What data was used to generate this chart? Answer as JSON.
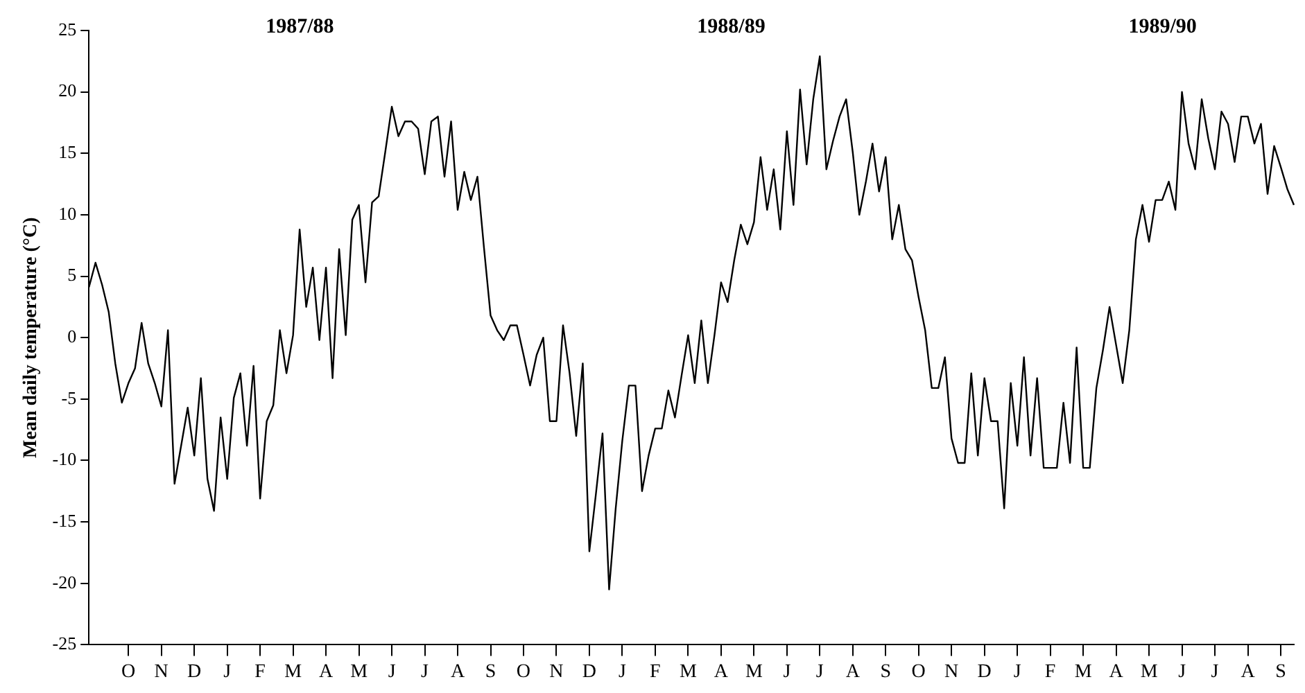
{
  "chart_data": {
    "type": "line",
    "ylabel": "Mean daily temperature (°C)",
    "annotations": [
      "1987/88",
      "1988/89",
      "1989/90"
    ],
    "grid": false,
    "legend": false,
    "marker": "none",
    "line_style": "solid",
    "ylim": [
      -25,
      25
    ],
    "yticks": [
      -25,
      -20,
      -15,
      -10,
      -5,
      0,
      5,
      10,
      15,
      20,
      25
    ],
    "categories": [
      null,
      null,
      null,
      null,
      null,
      null,
      "O",
      null,
      null,
      null,
      null,
      "N",
      null,
      null,
      null,
      null,
      "D",
      null,
      null,
      null,
      null,
      "J",
      null,
      null,
      null,
      null,
      "F",
      null,
      null,
      null,
      null,
      "M",
      null,
      null,
      null,
      null,
      "A",
      null,
      null,
      null,
      null,
      "M",
      null,
      null,
      null,
      null,
      "J",
      null,
      null,
      null,
      null,
      "J",
      null,
      null,
      null,
      null,
      "A",
      null,
      null,
      null,
      null,
      "S",
      null,
      null,
      null,
      null,
      "O",
      null,
      null,
      null,
      null,
      "N",
      null,
      null,
      null,
      null,
      "D",
      null,
      null,
      null,
      null,
      "J",
      null,
      null,
      null,
      null,
      "F",
      null,
      null,
      null,
      null,
      "M",
      null,
      null,
      null,
      null,
      "A",
      null,
      null,
      null,
      null,
      "M",
      null,
      null,
      null,
      null,
      "J",
      null,
      null,
      null,
      null,
      "J",
      null,
      null,
      null,
      null,
      "A",
      null,
      null,
      null,
      null,
      "S",
      null,
      null,
      null,
      null,
      "O",
      null,
      null,
      null,
      null,
      "N",
      null,
      null,
      null,
      null,
      "D",
      null,
      null,
      null,
      null,
      "J",
      null,
      null,
      null,
      null,
      "F",
      null,
      null,
      null,
      null,
      "M",
      null,
      null,
      null,
      null,
      "A",
      null,
      null,
      null,
      null,
      "M",
      null,
      null,
      null,
      null,
      "J",
      null,
      null,
      null,
      null,
      "J",
      null,
      null,
      null,
      null,
      "A",
      null,
      null,
      null,
      null,
      "S",
      null,
      null
    ],
    "series": [
      {
        "color": "#000000",
        "values": [
          4.1,
          6.1,
          4.3,
          2.1,
          -2.1,
          -5.3,
          -3.7,
          -2.5,
          1.2,
          -2.1,
          -3.7,
          -5.6,
          0.6,
          -11.9,
          -8.8,
          -5.7,
          -9.6,
          -3.3,
          -11.5,
          -14.1,
          -6.5,
          -11.5,
          -4.9,
          -2.9,
          -8.8,
          -2.3,
          -13.1,
          -6.8,
          -5.5,
          0.6,
          -2.9,
          0.2,
          8.8,
          2.5,
          5.7,
          -0.2,
          5.7,
          -3.3,
          7.2,
          0.2,
          9.6,
          10.8,
          4.5,
          11.0,
          11.5,
          15.1,
          18.8,
          16.4,
          17.6,
          17.6,
          17.0,
          13.3,
          17.6,
          18.0,
          13.1,
          17.6,
          10.4,
          13.5,
          11.2,
          13.1,
          7.3,
          1.8,
          0.6,
          -0.2,
          1.0,
          1.0,
          -1.4,
          -3.9,
          -1.4,
          0.0,
          -6.8,
          -6.8,
          1.0,
          -2.9,
          -8.0,
          -2.1,
          -17.4,
          -12.7,
          -7.8,
          -20.5,
          -13.9,
          -8.4,
          -3.9,
          -3.9,
          -12.5,
          -9.6,
          -7.4,
          -7.4,
          -4.3,
          -6.5,
          -3.1,
          0.2,
          -3.7,
          1.4,
          -3.7,
          0.2,
          4.5,
          2.9,
          6.3,
          9.2,
          7.6,
          9.4,
          14.7,
          10.4,
          13.7,
          8.8,
          16.8,
          10.8,
          20.2,
          14.1,
          19.4,
          22.9,
          13.7,
          16.0,
          18.0,
          19.4,
          15.1,
          10.0,
          12.7,
          15.8,
          11.9,
          14.7,
          8.0,
          10.8,
          7.2,
          6.3,
          3.3,
          0.6,
          -4.1,
          -4.1,
          -1.6,
          -8.2,
          -10.2,
          -10.2,
          -2.9,
          -9.6,
          -3.3,
          -6.8,
          -6.8,
          -13.9,
          -3.7,
          -8.8,
          -1.6,
          -9.6,
          -3.3,
          -10.6,
          -10.6,
          -10.6,
          -5.3,
          -10.2,
          -0.8,
          -10.6,
          -10.6,
          -4.1,
          -1.0,
          2.5,
          -0.6,
          -3.7,
          0.6,
          8.0,
          10.8,
          7.8,
          11.2,
          11.2,
          12.7,
          10.4,
          20.0,
          15.8,
          13.7,
          19.4,
          16.2,
          13.7,
          18.4,
          17.4,
          14.3,
          18.0,
          18.0,
          15.8,
          17.4,
          11.7,
          15.6,
          13.9,
          12.1,
          10.8
        ]
      }
    ]
  }
}
